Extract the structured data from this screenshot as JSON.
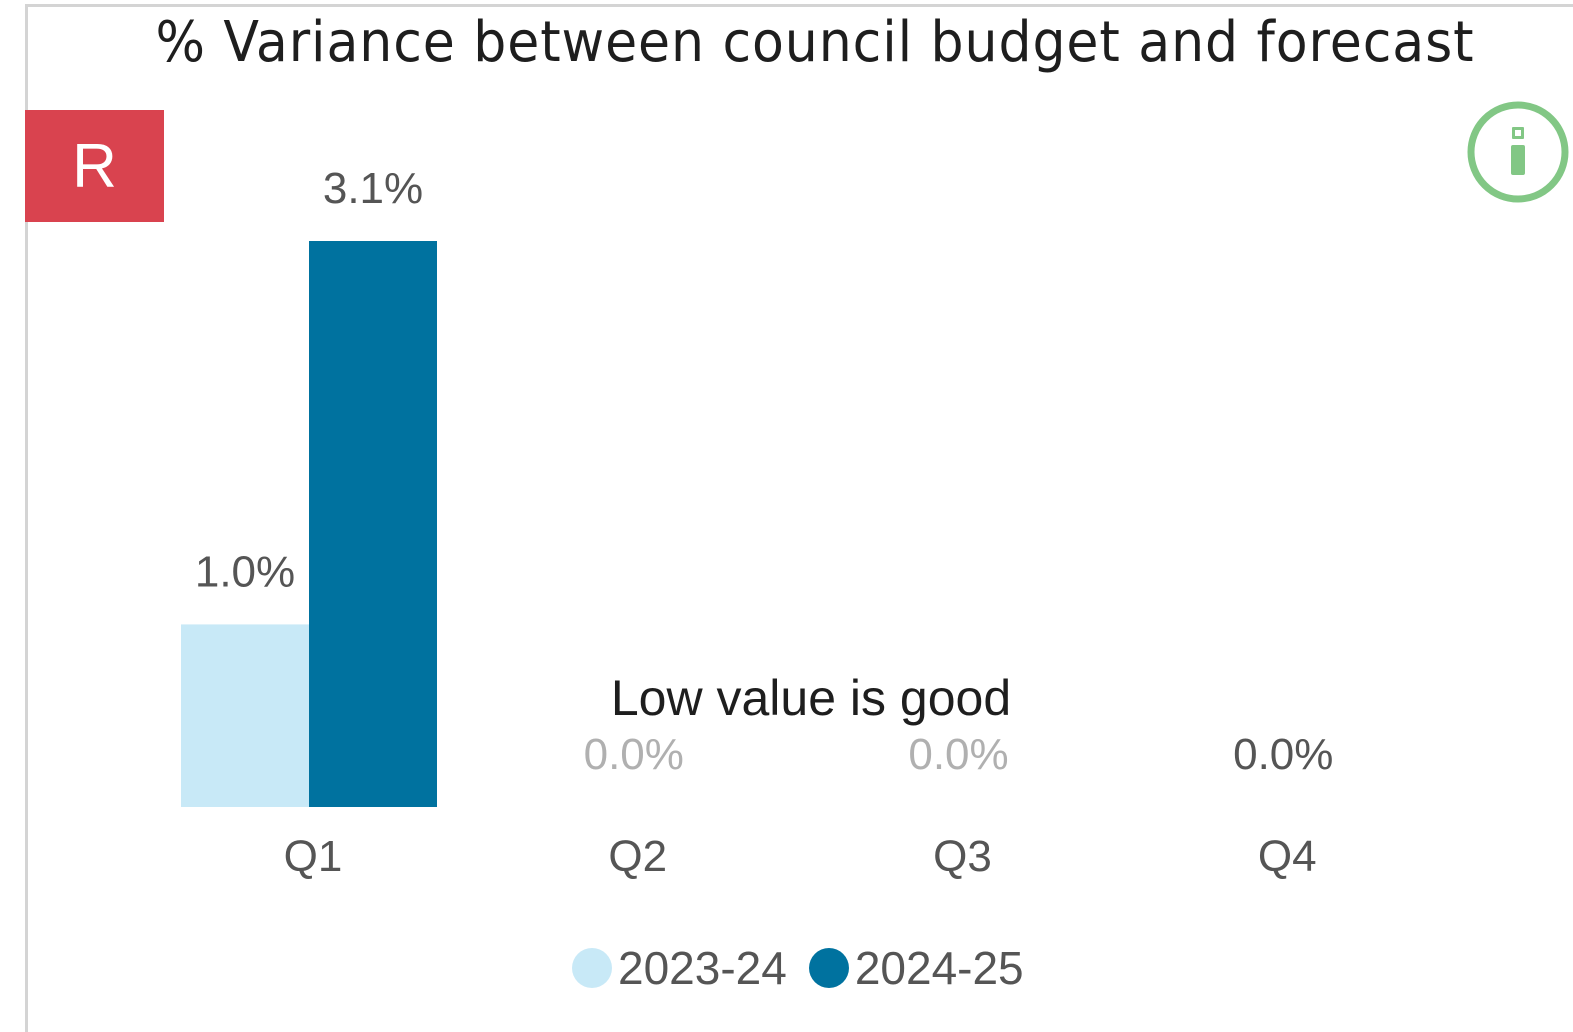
{
  "title": "% Variance between council budget and forecast",
  "rag_status": {
    "label": "R",
    "color": "#d9434f"
  },
  "info_button": {
    "icon": "info-icon",
    "color": "#82c785"
  },
  "annotation": "Low value is good",
  "chart_data": {
    "type": "bar",
    "categories": [
      "Q1",
      "Q2",
      "Q3",
      "Q4"
    ],
    "series": [
      {
        "name": "2023-24",
        "color": "#c8e9f7",
        "values": [
          1.0,
          null,
          null,
          null
        ],
        "labels": [
          "1.0%",
          "",
          "",
          ""
        ]
      },
      {
        "name": "2024-25",
        "color": "#00729f",
        "values": [
          3.1,
          0.0,
          0.0,
          0.0
        ],
        "labels": [
          "3.1%",
          "0.0%",
          "0.0%",
          "0.0%"
        ]
      }
    ],
    "ylim": [
      0,
      3.1
    ],
    "grid": false,
    "legend": "bottom-center",
    "label_color": "#555555",
    "faded_label_color": "#b0b0b0"
  }
}
